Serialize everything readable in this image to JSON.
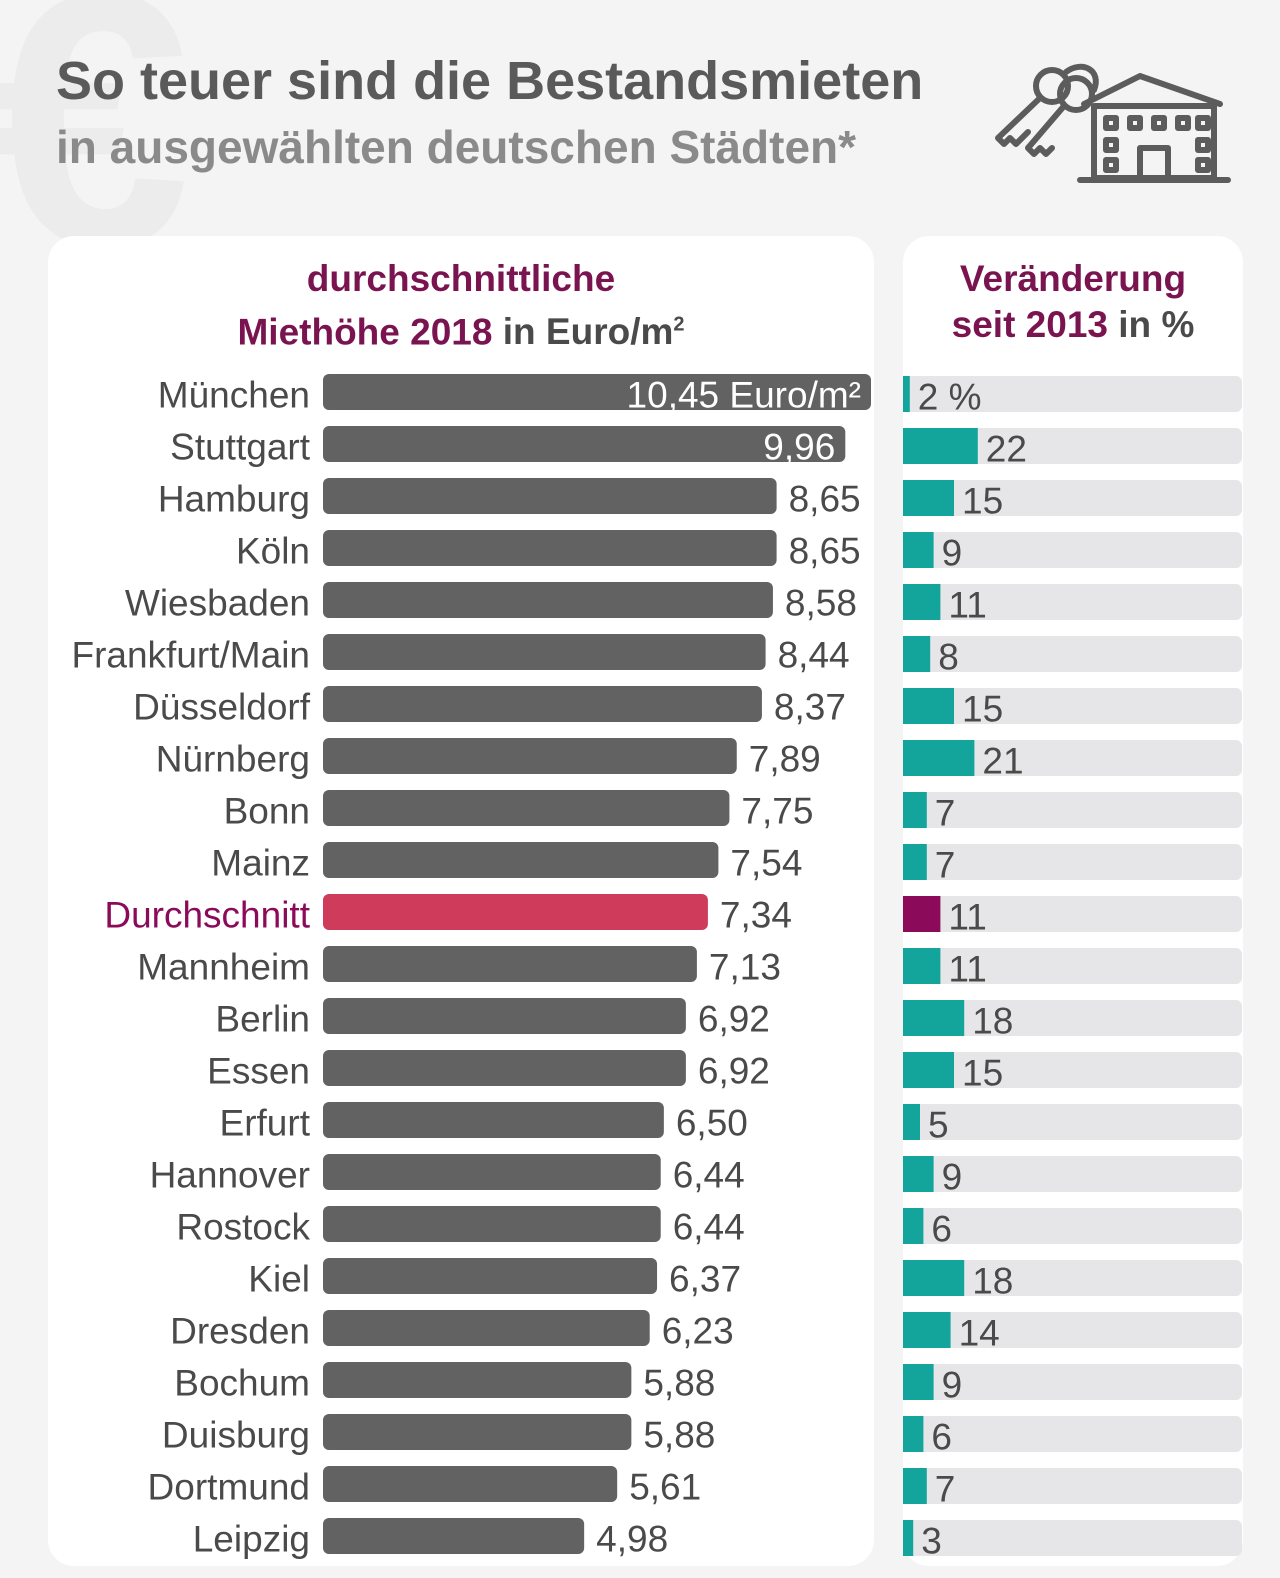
{
  "title": "So teuer sind die Bestandsmieten",
  "subtitle": "in ausgewählten deutschen Städten*",
  "icon": "keys-and-house-icon",
  "colors": {
    "bar": "#626262",
    "highlight_bar": "#cf3b5a",
    "change_bar": "#13a59b",
    "change_highlight": "#8b0b5a",
    "track": "#e6e6e8",
    "label": "#4a4a4a",
    "highlight_label": "#8b0b5a"
  },
  "left_header": {
    "line1": "durchschnittliche",
    "line2_bold": "Miethöhe 2018",
    "line2_plain": "in Euro/m",
    "sup": "2"
  },
  "right_header": {
    "line1": "Veränderung",
    "line2_bold": "seit 2013",
    "line2_plain": "in %"
  },
  "chart_data": [
    {
      "type": "bar",
      "orientation": "horizontal",
      "categories": [
        "München",
        "Stuttgart",
        "Hamburg",
        "Köln",
        "Wiesbaden",
        "Frankfurt/Main",
        "Düsseldorf",
        "Nürnberg",
        "Bonn",
        "Mainz",
        "Durchschnitt",
        "Mannheim",
        "Berlin",
        "Essen",
        "Erfurt",
        "Hannover",
        "Rostock",
        "Kiel",
        "Dresden",
        "Bochum",
        "Duisburg",
        "Dortmund",
        "Leipzig"
      ],
      "values": [
        10.45,
        9.96,
        8.65,
        8.65,
        8.58,
        8.44,
        8.37,
        7.89,
        7.75,
        7.54,
        7.34,
        7.13,
        6.92,
        6.92,
        6.5,
        6.44,
        6.44,
        6.37,
        6.23,
        5.88,
        5.88,
        5.61,
        4.98
      ],
      "value_labels": [
        "10,45 Euro/m²",
        "9,96",
        "8,65",
        "8,65",
        "8,58",
        "8,44",
        "8,37",
        "7,89",
        "7,75",
        "7,54",
        "7,34",
        "7,13",
        "6,92",
        "6,92",
        "6,50",
        "6,44",
        "6,44",
        "6,37",
        "6,23",
        "5,88",
        "5,88",
        "5,61",
        "4,98"
      ],
      "highlight": "Durchschnitt",
      "title": "durchschnittliche Miethöhe 2018 in Euro/m²",
      "xlim": [
        0,
        10.45
      ]
    },
    {
      "type": "bar",
      "orientation": "horizontal",
      "categories": [
        "München",
        "Stuttgart",
        "Hamburg",
        "Köln",
        "Wiesbaden",
        "Frankfurt/Main",
        "Düsseldorf",
        "Nürnberg",
        "Bonn",
        "Mainz",
        "Durchschnitt",
        "Mannheim",
        "Berlin",
        "Essen",
        "Erfurt",
        "Hannover",
        "Rostock",
        "Kiel",
        "Dresden",
        "Bochum",
        "Duisburg",
        "Dortmund",
        "Leipzig"
      ],
      "values": [
        2,
        22,
        15,
        9,
        11,
        8,
        15,
        21,
        7,
        7,
        11,
        11,
        18,
        15,
        5,
        9,
        6,
        18,
        14,
        9,
        6,
        7,
        3
      ],
      "value_labels": [
        "2 %",
        "22",
        "15",
        "9",
        "11",
        "8",
        "15",
        "21",
        "7",
        "7",
        "11",
        "11",
        "18",
        "15",
        "5",
        "9",
        "6",
        "18",
        "14",
        "9",
        "6",
        "7",
        "3"
      ],
      "highlight": "Durchschnitt",
      "title": "Veränderung seit 2013 in %",
      "xlim": [
        0,
        100
      ]
    }
  ]
}
